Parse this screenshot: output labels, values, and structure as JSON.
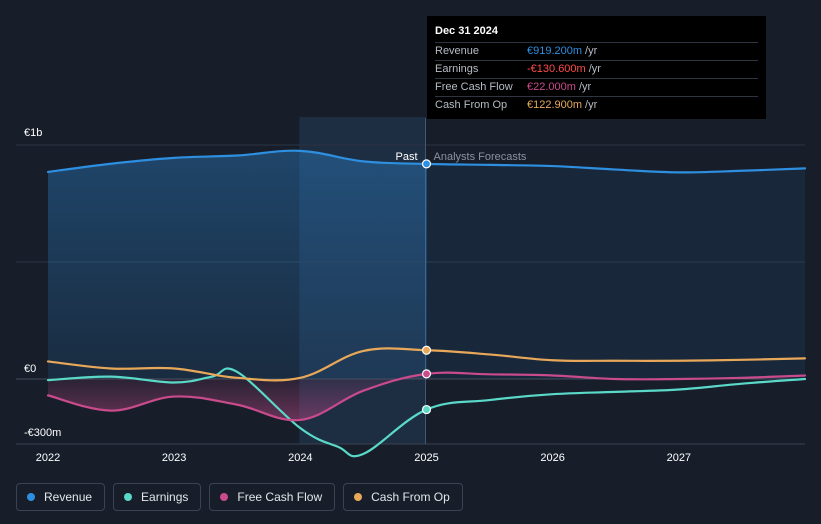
{
  "chart_data": {
    "type": "line",
    "title": "",
    "xlabel": "",
    "ylabel": "",
    "x_ticks": [
      "2022",
      "2023",
      "2024",
      "2025",
      "2026",
      "2027"
    ],
    "xlim": [
      2022,
      2028
    ],
    "ylim": [
      -300,
      1000
    ],
    "y_tick_labels": [
      {
        "value": 1000,
        "label": "€1b"
      },
      {
        "value": 0,
        "label": "€0"
      },
      {
        "value": -300,
        "label": "-€300m"
      }
    ],
    "past_label": "Past",
    "forecast_label": "Analysts Forecasts",
    "divider_x": 2025,
    "highlight_start_x": 2024,
    "series": [
      {
        "name": "Revenue",
        "color": "#2e8fe0",
        "fill": true,
        "points": [
          [
            2022,
            885
          ],
          [
            2022.5,
            920
          ],
          [
            2023,
            945
          ],
          [
            2023.5,
            955
          ],
          [
            2024,
            975
          ],
          [
            2024.5,
            930
          ],
          [
            2025,
            919.2
          ],
          [
            2025.5,
            915
          ],
          [
            2026,
            910
          ],
          [
            2026.5,
            895
          ],
          [
            2027,
            883
          ],
          [
            2027.5,
            890
          ],
          [
            2028,
            900
          ]
        ]
      },
      {
        "name": "Earnings",
        "color": "#5ad9c8",
        "fill": false,
        "points": [
          [
            2022,
            -5
          ],
          [
            2022.5,
            10
          ],
          [
            2023,
            -15
          ],
          [
            2023.3,
            10
          ],
          [
            2023.5,
            30
          ],
          [
            2024,
            -210
          ],
          [
            2024.3,
            -290
          ],
          [
            2024.5,
            -320
          ],
          [
            2025,
            -130.6
          ],
          [
            2025.5,
            -90
          ],
          [
            2026,
            -65
          ],
          [
            2026.5,
            -55
          ],
          [
            2027,
            -45
          ],
          [
            2027.5,
            -20
          ],
          [
            2028,
            0
          ]
        ]
      },
      {
        "name": "Free Cash Flow",
        "color": "#c94b8c",
        "fill": true,
        "points": [
          [
            2022,
            -70
          ],
          [
            2022.5,
            -135
          ],
          [
            2023,
            -75
          ],
          [
            2023.5,
            -110
          ],
          [
            2024,
            -175
          ],
          [
            2024.5,
            -50
          ],
          [
            2025,
            22
          ],
          [
            2025.5,
            20
          ],
          [
            2026,
            15
          ],
          [
            2026.5,
            0
          ],
          [
            2027,
            0
          ],
          [
            2027.5,
            5
          ],
          [
            2028,
            15
          ]
        ]
      },
      {
        "name": "Cash From Op",
        "color": "#e8a85a",
        "fill": false,
        "points": [
          [
            2022,
            75
          ],
          [
            2022.5,
            45
          ],
          [
            2023,
            45
          ],
          [
            2023.5,
            5
          ],
          [
            2024,
            5
          ],
          [
            2024.5,
            120
          ],
          [
            2025,
            122.9
          ],
          [
            2025.5,
            105
          ],
          [
            2026,
            80
          ],
          [
            2026.5,
            78
          ],
          [
            2027,
            78
          ],
          [
            2027.5,
            82
          ],
          [
            2028,
            88
          ]
        ]
      }
    ],
    "highlight_points_x": 2025
  },
  "tooltip": {
    "date": "Dec 31 2024",
    "rows": [
      {
        "label": "Revenue",
        "value": "€919.200m",
        "unit": "/yr",
        "color": "#2e8fe0"
      },
      {
        "label": "Earnings",
        "value": "-€130.600m",
        "unit": "/yr",
        "color": "#ff4a4a"
      },
      {
        "label": "Free Cash Flow",
        "value": "€22.000m",
        "unit": "/yr",
        "color": "#c94b8c"
      },
      {
        "label": "Cash From Op",
        "value": "€122.900m",
        "unit": "/yr",
        "color": "#e8a85a"
      }
    ]
  },
  "legend": [
    {
      "label": "Revenue",
      "color": "#2e8fe0"
    },
    {
      "label": "Earnings",
      "color": "#5ad9c8"
    },
    {
      "label": "Free Cash Flow",
      "color": "#c94b8c"
    },
    {
      "label": "Cash From Op",
      "color": "#e8a85a"
    }
  ]
}
